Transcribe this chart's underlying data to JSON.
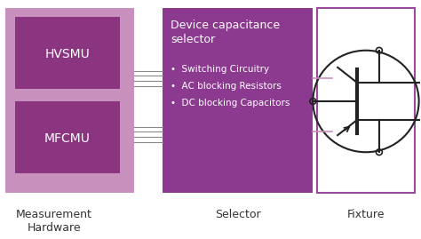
{
  "bg_color": "#ffffff",
  "light_purple": "#c890bc",
  "dark_purple": "#8b3580",
  "selector_purple": "#8b3a8f",
  "fixture_border": "#9b4a9b",
  "text_white": "#ffffff",
  "text_dark": "#333333",
  "line_color": "#888888",
  "transistor_color": "#222222",
  "title_line1": "Device capacitance",
  "title_line2": "selector",
  "bullet_items": [
    "Switching Circuitry",
    "AC blocking Resistors",
    "DC blocking Capacitors"
  ],
  "label_measurement": "Measurement\nHardware",
  "label_selector": "Selector",
  "label_fixture": "Fixture",
  "hvsmu_label": "HVSMU",
  "mfcmu_label": "MFCMU"
}
